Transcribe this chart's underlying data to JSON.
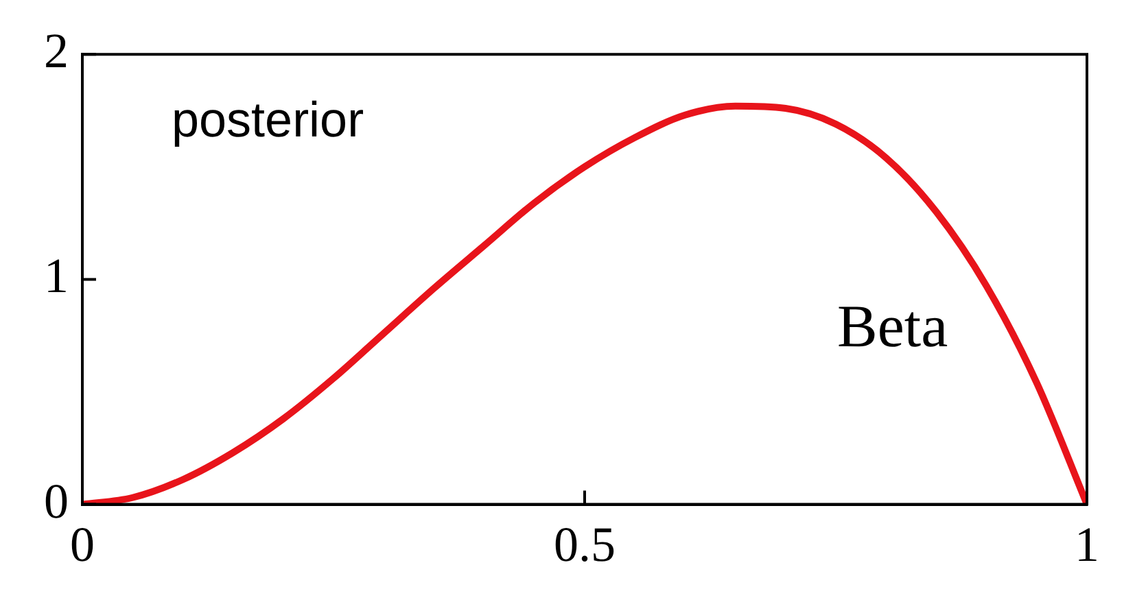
{
  "chart_data": {
    "type": "line",
    "x": [
      0,
      0.05,
      0.1,
      0.15,
      0.2,
      0.25,
      0.3,
      0.35,
      0.4,
      0.45,
      0.5,
      0.55,
      0.6,
      0.65,
      0.7,
      0.75,
      0.8,
      0.85,
      0.9,
      0.95,
      1
    ],
    "series": [
      {
        "color": "#e8141b",
        "values": [
          0,
          0.03,
          0.11,
          0.23,
          0.38,
          0.56,
          0.76,
          0.96,
          1.15,
          1.34,
          1.5,
          1.63,
          1.73,
          1.77,
          1.76,
          1.69,
          1.54,
          1.3,
          0.97,
          0.54,
          0
        ]
      }
    ],
    "xlim": [
      0,
      1
    ],
    "xticks": [
      0,
      0.5,
      1
    ],
    "ylim": [
      0,
      2
    ],
    "yticks": [
      0,
      1,
      2
    ],
    "grid": false,
    "legend": false,
    "marker": "none",
    "line_style": "solid",
    "annotations": [
      "posterior",
      "Beta"
    ]
  }
}
